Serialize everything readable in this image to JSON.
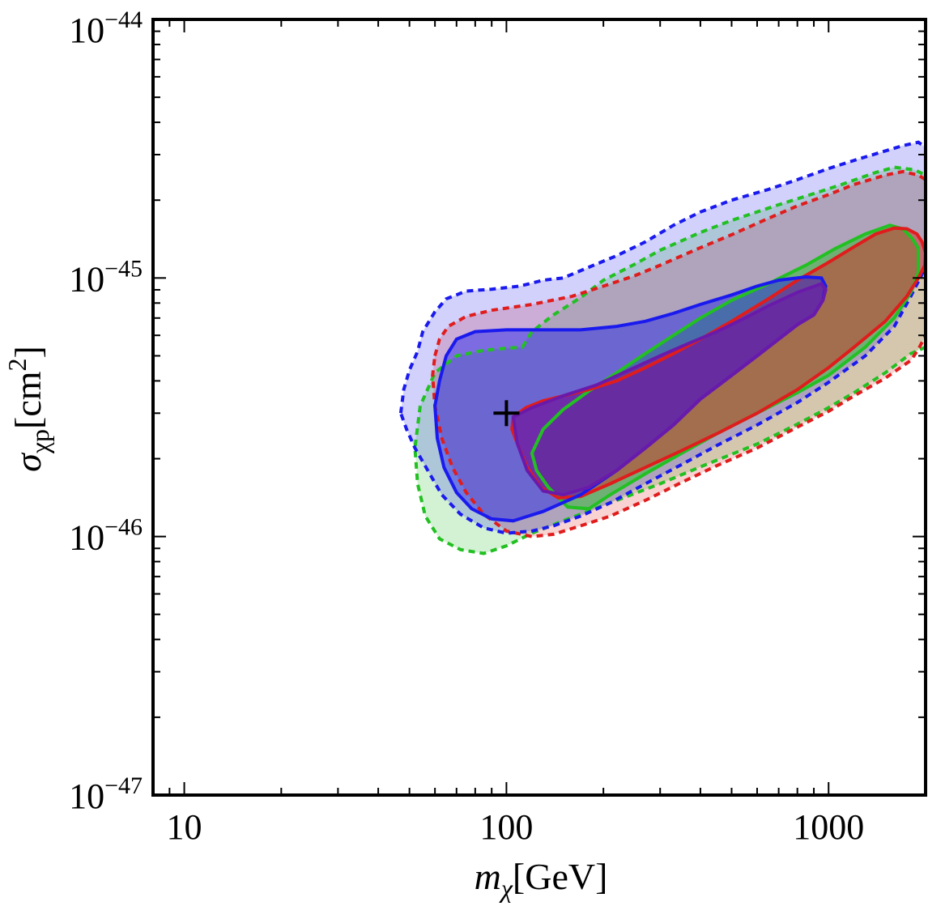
{
  "chart_data": {
    "type": "contour",
    "title": "",
    "x_scale": "log",
    "y_scale": "log",
    "xlim": [
      8,
      2000
    ],
    "ylim": [
      1e-47,
      1e-44
    ],
    "xlabel": {
      "symbol": "m",
      "subscript": "χ",
      "unit": "[GeV]"
    },
    "ylabel": {
      "symbol": "σ",
      "subscript": "χp",
      "unit_open": "[cm",
      "unit_exp": "2",
      "unit_close": "]"
    },
    "x_ticks": [
      {
        "value": 10,
        "label": "10"
      },
      {
        "value": 100,
        "label": "100"
      },
      {
        "value": 1000,
        "label": "1000"
      }
    ],
    "y_ticks": [
      {
        "value": 1e-47,
        "base": "10",
        "exp": "−47"
      },
      {
        "value": 1e-46,
        "base": "10",
        "exp": "−46"
      },
      {
        "value": 1e-45,
        "base": "10",
        "exp": "−45"
      },
      {
        "value": 1e-44,
        "base": "10",
        "exp": "−44"
      }
    ],
    "benchmark_point": {
      "x": 100,
      "y": 3e-46,
      "marker": "+"
    },
    "series": [
      {
        "name": "green",
        "color": "#22c022",
        "outer": [
          [
            112,
            5.4e-46
          ],
          [
            120,
            6.2e-46
          ],
          [
            140,
            7.2e-46
          ],
          [
            170,
            8.4e-46
          ],
          [
            200,
            9.8e-46
          ],
          [
            250,
            1.13e-45
          ],
          [
            300,
            1.28e-45
          ],
          [
            400,
            1.5e-45
          ],
          [
            500,
            1.67e-45
          ],
          [
            700,
            1.92e-45
          ],
          [
            900,
            2.12e-45
          ],
          [
            1100,
            2.3e-45
          ],
          [
            1400,
            2.56e-45
          ],
          [
            1600,
            2.68e-45
          ],
          [
            1850,
            2.62e-45
          ],
          [
            2000,
            2.5e-45
          ],
          [
            2000,
            5.4e-46
          ],
          [
            1800,
            5.1e-46
          ],
          [
            1500,
            4.3e-46
          ],
          [
            1200,
            3.6e-46
          ],
          [
            1000,
            3.15e-46
          ],
          [
            800,
            2.72e-46
          ],
          [
            600,
            2.28e-46
          ],
          [
            400,
            1.86e-46
          ],
          [
            300,
            1.6e-46
          ],
          [
            200,
            1.32e-46
          ],
          [
            150,
            1.15e-46
          ],
          [
            120,
            1.03e-46
          ],
          [
            100,
            9.2e-47
          ],
          [
            85,
            8.6e-47
          ],
          [
            72,
            8.9e-47
          ],
          [
            62,
            9.8e-47
          ],
          [
            56,
            1.2e-46
          ],
          [
            53,
            1.6e-46
          ],
          [
            52,
            2.2e-46
          ],
          [
            54,
            3.2e-46
          ],
          [
            60,
            4.3e-46
          ],
          [
            70,
            5e-46
          ],
          [
            85,
            5.25e-46
          ],
          [
            100,
            5.35e-46
          ]
        ],
        "inner": [
          [
            120,
            2.1e-46
          ],
          [
            130,
            2.6e-46
          ],
          [
            150,
            3.1e-46
          ],
          [
            180,
            3.65e-46
          ],
          [
            220,
            4.3e-46
          ],
          [
            270,
            5.1e-46
          ],
          [
            330,
            6e-46
          ],
          [
            400,
            7e-46
          ],
          [
            500,
            8.2e-46
          ],
          [
            650,
            9.5e-46
          ],
          [
            850,
            1.12e-45
          ],
          [
            1050,
            1.3e-45
          ],
          [
            1300,
            1.48e-45
          ],
          [
            1550,
            1.6e-45
          ],
          [
            1700,
            1.55e-45
          ],
          [
            1820,
            1.42e-45
          ],
          [
            1900,
            1.3e-45
          ],
          [
            1900,
            1.05e-45
          ],
          [
            1800,
            8.8e-46
          ],
          [
            1600,
            7e-46
          ],
          [
            1300,
            5.4e-46
          ],
          [
            1000,
            4.2e-46
          ],
          [
            800,
            3.6e-46
          ],
          [
            600,
            3e-46
          ],
          [
            450,
            2.5e-46
          ],
          [
            350,
            2.1e-46
          ],
          [
            270,
            1.75e-46
          ],
          [
            210,
            1.45e-46
          ],
          [
            180,
            1.28e-46
          ],
          [
            155,
            1.3e-46
          ],
          [
            135,
            1.55e-46
          ],
          [
            124,
            1.8e-46
          ]
        ]
      },
      {
        "name": "red",
        "color": "#e01c1c",
        "outer": [
          [
            60,
            5e-46
          ],
          [
            62,
            5.8e-46
          ],
          [
            66,
            6.5e-46
          ],
          [
            75,
            7.1e-46
          ],
          [
            90,
            7.5e-46
          ],
          [
            120,
            7.9e-46
          ],
          [
            160,
            8.5e-46
          ],
          [
            200,
            9.3e-46
          ],
          [
            250,
            1.02e-45
          ],
          [
            300,
            1.12e-45
          ],
          [
            400,
            1.31e-45
          ],
          [
            500,
            1.47e-45
          ],
          [
            650,
            1.7e-45
          ],
          [
            800,
            1.9e-45
          ],
          [
            1000,
            2.1e-45
          ],
          [
            1200,
            2.3e-45
          ],
          [
            1500,
            2.5e-45
          ],
          [
            1700,
            2.58e-45
          ],
          [
            1900,
            2.5e-45
          ],
          [
            2000,
            2.4e-45
          ],
          [
            2000,
            6e-46
          ],
          [
            1900,
            5.3e-46
          ],
          [
            1800,
            4.8e-46
          ],
          [
            1500,
            4.1e-46
          ],
          [
            1200,
            3.5e-46
          ],
          [
            1000,
            3.05e-46
          ],
          [
            800,
            2.65e-46
          ],
          [
            600,
            2.2e-46
          ],
          [
            450,
            1.88e-46
          ],
          [
            350,
            1.62e-46
          ],
          [
            270,
            1.38e-46
          ],
          [
            210,
            1.2e-46
          ],
          [
            170,
            1.1e-46
          ],
          [
            140,
            1.02e-46
          ],
          [
            120,
            1e-46
          ],
          [
            100,
            1.05e-46
          ],
          [
            85,
            1.22e-46
          ],
          [
            75,
            1.48e-46
          ],
          [
            68,
            1.85e-46
          ],
          [
            63,
            2.4e-46
          ],
          [
            60,
            3.2e-46
          ],
          [
            59,
            4.2e-46
          ]
        ],
        "inner": [
          [
            105,
            2.9e-46
          ],
          [
            115,
            3.15e-46
          ],
          [
            130,
            3.35e-46
          ],
          [
            150,
            3.5e-46
          ],
          [
            180,
            3.7e-46
          ],
          [
            220,
            4e-46
          ],
          [
            270,
            4.5e-46
          ],
          [
            330,
            5.1e-46
          ],
          [
            400,
            5.8e-46
          ],
          [
            500,
            6.8e-46
          ],
          [
            650,
            8.3e-46
          ],
          [
            800,
            9.8e-46
          ],
          [
            1000,
            1.15e-45
          ],
          [
            1200,
            1.32e-45
          ],
          [
            1400,
            1.48e-45
          ],
          [
            1600,
            1.56e-45
          ],
          [
            1750,
            1.55e-45
          ],
          [
            1880,
            1.48e-45
          ],
          [
            1950,
            1.38e-45
          ],
          [
            2000,
            1.25e-45
          ],
          [
            1990,
            1.12e-45
          ],
          [
            1900,
            1e-45
          ],
          [
            1750,
            8.5e-46
          ],
          [
            1500,
            6.8e-46
          ],
          [
            1200,
            5.4e-46
          ],
          [
            1000,
            4.5e-46
          ],
          [
            800,
            3.7e-46
          ],
          [
            600,
            3e-46
          ],
          [
            450,
            2.5e-46
          ],
          [
            350,
            2.15e-46
          ],
          [
            270,
            1.85e-46
          ],
          [
            210,
            1.6e-46
          ],
          [
            170,
            1.43e-46
          ],
          [
            145,
            1.41e-46
          ],
          [
            128,
            1.55e-46
          ],
          [
            116,
            1.85e-46
          ],
          [
            108,
            2.3e-46
          ],
          [
            104,
            2.6e-46
          ]
        ]
      },
      {
        "name": "blue",
        "color": "#1a1aee",
        "outer": [
          [
            47,
            3e-46
          ],
          [
            48,
            3.7e-46
          ],
          [
            50,
            4.4e-46
          ],
          [
            53,
            5.2e-46
          ],
          [
            55,
            6.2e-46
          ],
          [
            60,
            7.4e-46
          ],
          [
            65,
            8.3e-46
          ],
          [
            75,
            8.9e-46
          ],
          [
            90,
            9.05e-46
          ],
          [
            110,
            9.3e-46
          ],
          [
            130,
            9.8e-46
          ],
          [
            150,
            1e-45
          ],
          [
            180,
            1.1e-45
          ],
          [
            220,
            1.22e-45
          ],
          [
            270,
            1.38e-45
          ],
          [
            330,
            1.6e-45
          ],
          [
            400,
            1.8e-45
          ],
          [
            500,
            2e-45
          ],
          [
            650,
            2.2e-45
          ],
          [
            800,
            2.4e-45
          ],
          [
            1000,
            2.65e-45
          ],
          [
            1200,
            2.85e-45
          ],
          [
            1500,
            3.1e-45
          ],
          [
            1700,
            3.25e-45
          ],
          [
            1900,
            3.35e-45
          ],
          [
            2000,
            3.2e-45
          ],
          [
            2000,
            1.1e-45
          ],
          [
            1800,
            8.5e-46
          ],
          [
            1600,
            6.5e-46
          ],
          [
            1300,
            5e-46
          ],
          [
            1000,
            3.95e-46
          ],
          [
            800,
            3.3e-46
          ],
          [
            600,
            2.7e-46
          ],
          [
            450,
            2.25e-46
          ],
          [
            350,
            1.9e-46
          ],
          [
            270,
            1.6e-46
          ],
          [
            210,
            1.35e-46
          ],
          [
            170,
            1.2e-46
          ],
          [
            140,
            1.1e-46
          ],
          [
            120,
            1.05e-46
          ],
          [
            100,
            1.03e-46
          ],
          [
            85,
            1.08e-46
          ],
          [
            72,
            1.22e-46
          ],
          [
            63,
            1.45e-46
          ],
          [
            57,
            1.8e-46
          ],
          [
            52,
            2.2e-46
          ],
          [
            49,
            2.6e-46
          ]
        ],
        "inner": [
          [
            60,
            3.2e-46
          ],
          [
            62,
            4e-46
          ],
          [
            65,
            5e-46
          ],
          [
            70,
            5.8e-46
          ],
          [
            80,
            6.2e-46
          ],
          [
            100,
            6.3e-46
          ],
          [
            130,
            6.3e-46
          ],
          [
            170,
            6.3e-46
          ],
          [
            220,
            6.5e-46
          ],
          [
            270,
            6.8e-46
          ],
          [
            330,
            7.3e-46
          ],
          [
            400,
            7.9e-46
          ],
          [
            500,
            8.6e-46
          ],
          [
            600,
            9.3e-46
          ],
          [
            700,
            9.8e-46
          ],
          [
            850,
            1.01e-45
          ],
          [
            950,
            1e-45
          ],
          [
            980,
            9.3e-46
          ],
          [
            960,
            8.2e-46
          ],
          [
            900,
            7.2e-46
          ],
          [
            800,
            6.6e-46
          ],
          [
            700,
            5.8e-46
          ],
          [
            600,
            5e-46
          ],
          [
            500,
            4.2e-46
          ],
          [
            400,
            3.4e-46
          ],
          [
            330,
            2.7e-46
          ],
          [
            270,
            2.2e-46
          ],
          [
            220,
            1.8e-46
          ],
          [
            170,
            1.45e-46
          ],
          [
            130,
            1.25e-46
          ],
          [
            105,
            1.15e-46
          ],
          [
            90,
            1.17e-46
          ],
          [
            78,
            1.28e-46
          ],
          [
            70,
            1.48e-46
          ],
          [
            64,
            1.85e-46
          ],
          [
            61,
            2.4e-46
          ]
        ]
      }
    ],
    "purple_overlap": {
      "color": "#6a1aaa",
      "region": [
        [
          105,
          2.9e-46
        ],
        [
          120,
          3.15e-46
        ],
        [
          150,
          3.5e-46
        ],
        [
          190,
          3.85e-46
        ],
        [
          240,
          4.4e-46
        ],
        [
          300,
          5e-46
        ],
        [
          370,
          5.6e-46
        ],
        [
          450,
          6.2e-46
        ],
        [
          550,
          7e-46
        ],
        [
          650,
          7.8e-46
        ],
        [
          800,
          8.8e-46
        ],
        [
          950,
          9.5e-46
        ],
        [
          980,
          9e-46
        ],
        [
          960,
          8.2e-46
        ],
        [
          900,
          7.2e-46
        ],
        [
          800,
          6.6e-46
        ],
        [
          700,
          5.8e-46
        ],
        [
          600,
          5e-46
        ],
        [
          500,
          4.2e-46
        ],
        [
          400,
          3.4e-46
        ],
        [
          330,
          2.7e-46
        ],
        [
          270,
          2.2e-46
        ],
        [
          220,
          1.8e-46
        ],
        [
          180,
          1.55e-46
        ],
        [
          150,
          1.45e-46
        ],
        [
          130,
          1.5e-46
        ],
        [
          116,
          1.8e-46
        ],
        [
          108,
          2.3e-46
        ]
      ]
    }
  }
}
